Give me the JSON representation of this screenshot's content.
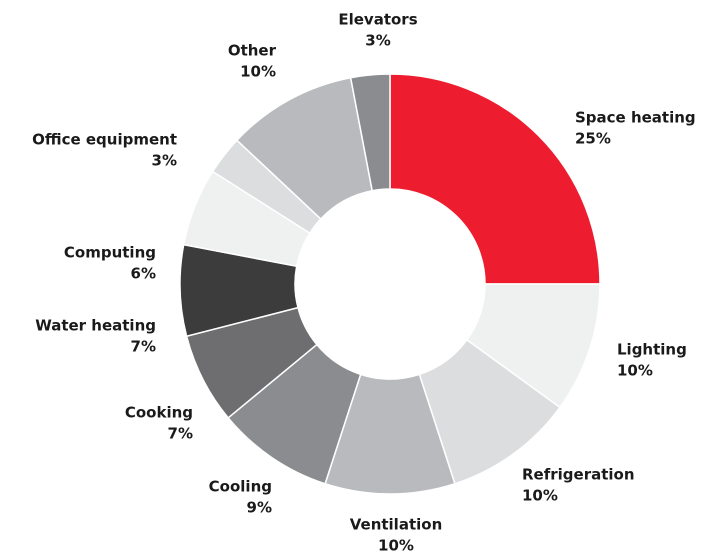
{
  "chart_data": {
    "type": "donut",
    "categories": [
      "Space heating",
      "Lighting",
      "Refrigeration",
      "Ventilation",
      "Cooling",
      "Cooking",
      "Water heating",
      "Computing",
      "Office equipment",
      "Other",
      "Elevators"
    ],
    "values": [
      25,
      10,
      10,
      10,
      9,
      7,
      7,
      6,
      3,
      10,
      3
    ],
    "value_labels": [
      "25%",
      "10%",
      "10%",
      "10%",
      "9%",
      "7%",
      "7%",
      "6%",
      "3%",
      "10%",
      "3%"
    ],
    "colors": [
      "#ed1c2e",
      "#eff0f0",
      "#dcdddf",
      "#b9babd",
      "#8a8c8f",
      "#6e6e70",
      "#3c3c3c",
      "#eff0f0",
      "#dcdddf",
      "#b9babd",
      "#8a8c8f"
    ]
  }
}
